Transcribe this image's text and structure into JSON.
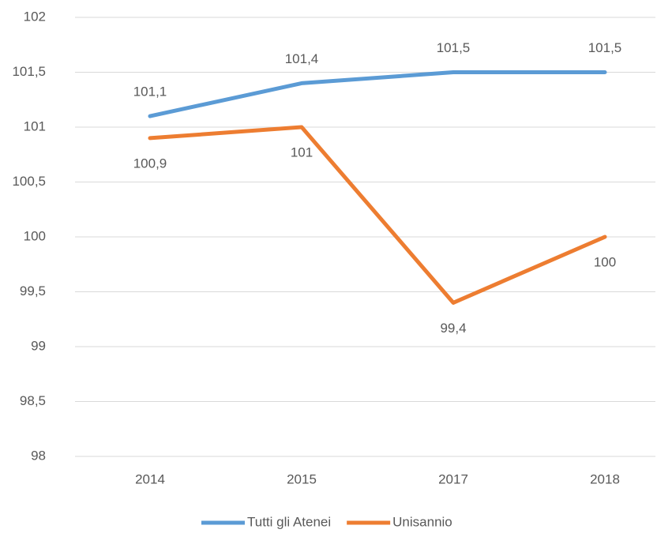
{
  "chart_data": {
    "type": "line",
    "categories": [
      "2014",
      "2015",
      "2017",
      "2018"
    ],
    "series": [
      {
        "name": "Tutti gli Atenei",
        "color": "#5b9bd5",
        "values": [
          101.1,
          101.4,
          101.5,
          101.5
        ],
        "value_labels": [
          "101,1",
          "101,4",
          "101,5",
          "101,5"
        ]
      },
      {
        "name": "Unisannio",
        "color": "#ed7d31",
        "values": [
          100.9,
          101,
          99.4,
          100
        ],
        "value_labels": [
          "100,9",
          "101",
          "99,4",
          "100"
        ]
      }
    ],
    "ylim": [
      98,
      102
    ],
    "yticks": [
      98,
      {
        "value": 98.5,
        "label": "98,5"
      },
      99,
      {
        "value": 99.5,
        "label": "99,5"
      },
      100,
      {
        "value": 100.5,
        "label": "100,5"
      },
      101,
      {
        "value": 101.5,
        "label": "101,5"
      },
      102
    ],
    "grid": true,
    "legend": "bottom"
  }
}
